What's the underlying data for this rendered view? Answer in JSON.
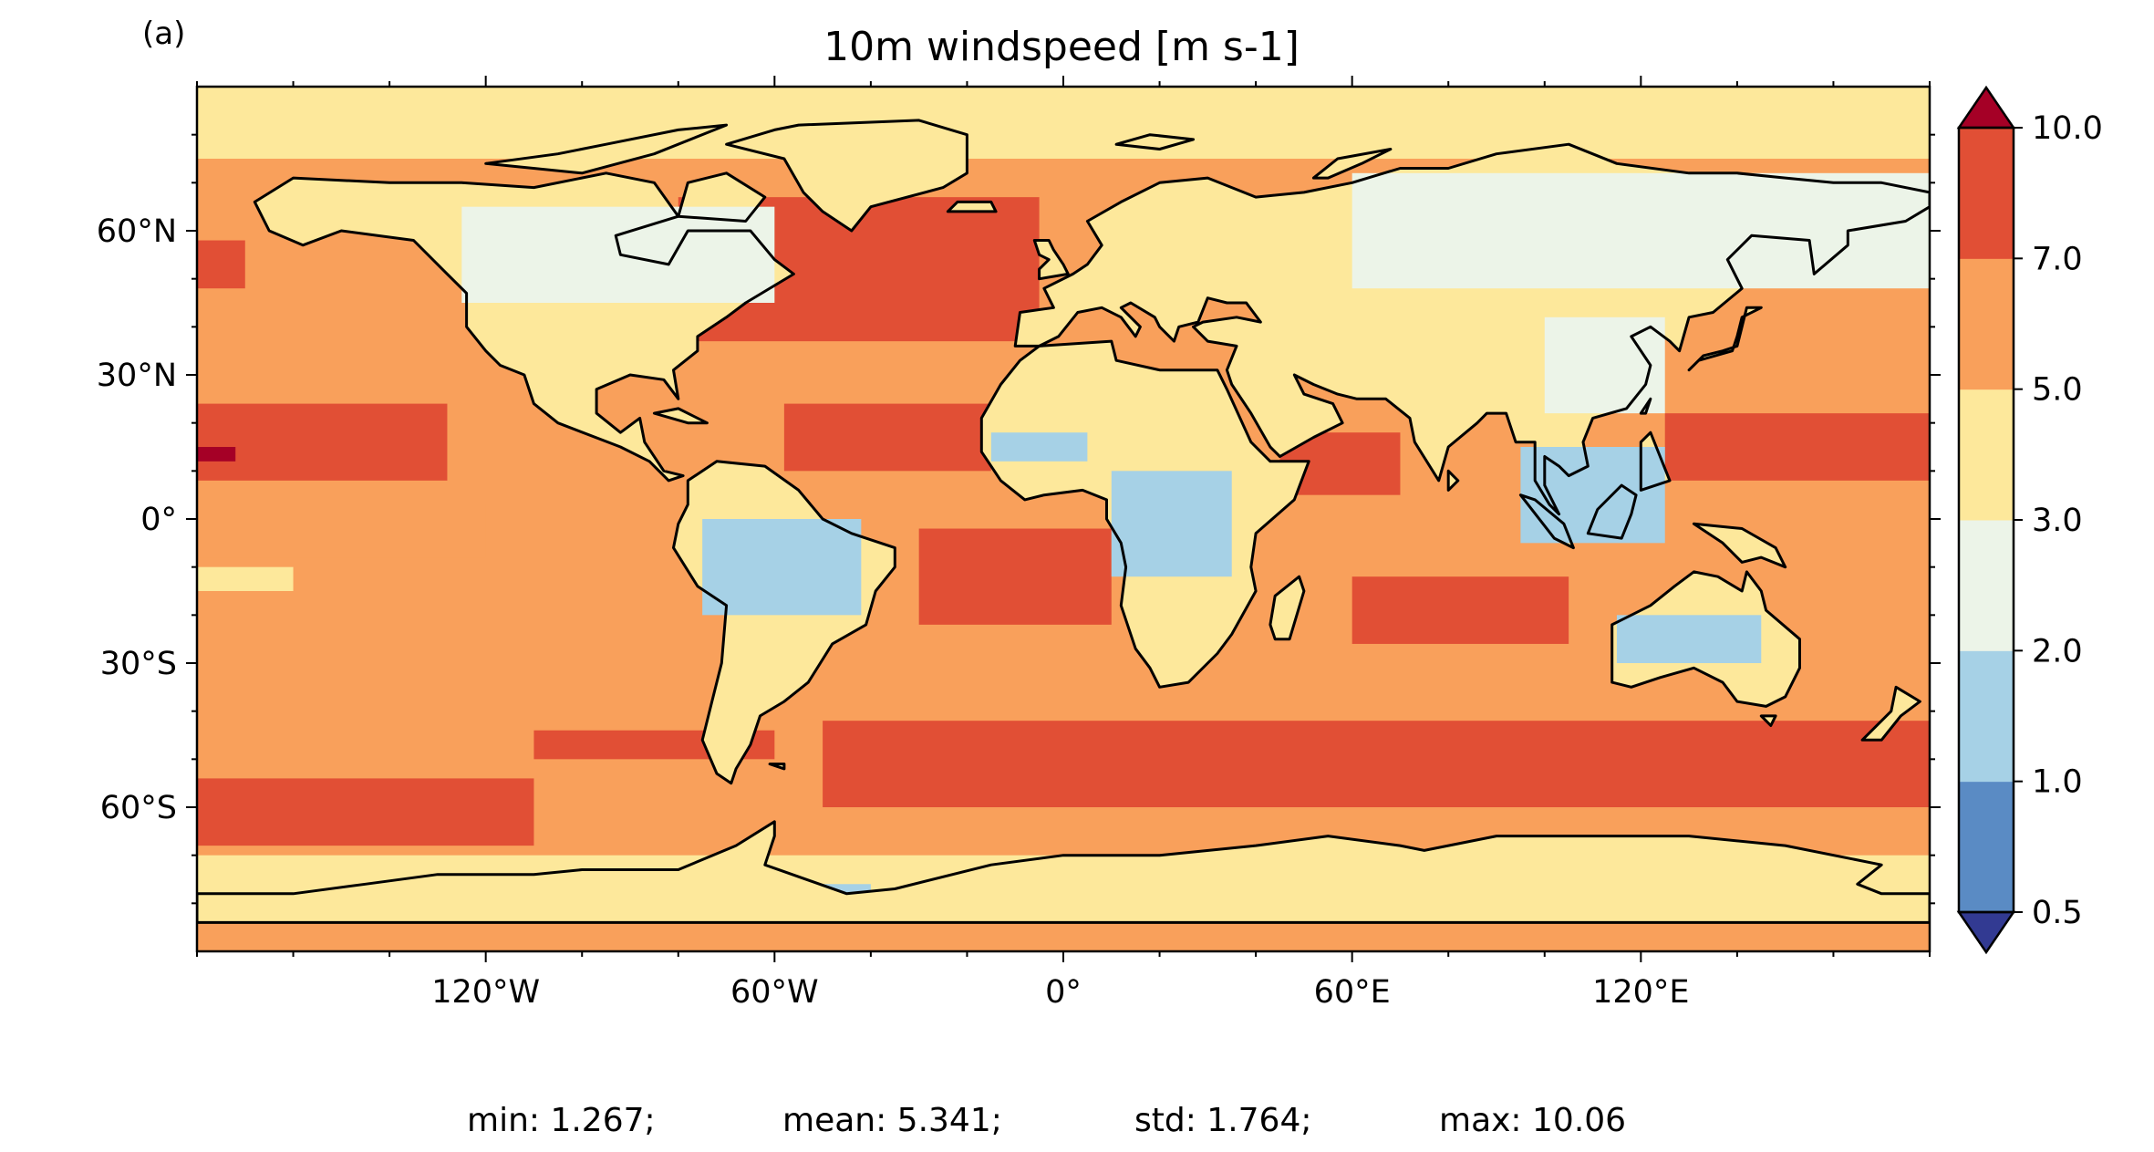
{
  "panel_label": "(a)",
  "title": "10m windspeed [m s-1]",
  "x_ticks": [
    "120°W",
    "60°W",
    "0°",
    "60°E",
    "120°E"
  ],
  "y_ticks": [
    "60°N",
    "30°N",
    "0°",
    "30°S",
    "60°S"
  ],
  "colorbar": {
    "levels": [
      0.5,
      1.0,
      2.0,
      3.0,
      5.0,
      7.0,
      10.0
    ],
    "labels": [
      "0.5",
      "1.0",
      "2.0",
      "3.0",
      "5.0",
      "7.0",
      "10.0"
    ],
    "colors": [
      "#5a8bc4",
      "#a6d1e6",
      "#ecf4e8",
      "#fde89b",
      "#f9a05b",
      "#e14f35"
    ],
    "under_color": "#323a92",
    "over_color": "#a50026"
  },
  "stats": {
    "min": "min: 1.267;",
    "mean": "mean: 5.341;",
    "std": "std: 1.764;",
    "max": "max: 10.06"
  },
  "map_data": {
    "projection": "plate-carree",
    "lon_range": [
      -180,
      180
    ],
    "lat_range": [
      -90,
      90
    ],
    "ocean_background_class": 4,
    "zones": [
      {
        "name": "southern-ocean-band",
        "lon": [
          -50,
          180
        ],
        "lat": [
          -60,
          -42
        ],
        "class": 5
      },
      {
        "name": "south-pacific-storm-track",
        "lon": [
          -180,
          -110
        ],
        "lat": [
          -68,
          -54
        ],
        "class": 5
      },
      {
        "name": "south-pacific-band",
        "lon": [
          -110,
          -60
        ],
        "lat": [
          -50,
          -44
        ],
        "class": 5
      },
      {
        "name": "north-pacific-trades",
        "lon": [
          -180,
          -128
        ],
        "lat": [
          8,
          24
        ],
        "class": 5
      },
      {
        "name": "north-atlantic-storm-track",
        "lon": [
          -80,
          -5
        ],
        "lat": [
          37,
          67
        ],
        "class": 5
      },
      {
        "name": "atlantic-trades",
        "lon": [
          -58,
          -15
        ],
        "lat": [
          10,
          24
        ],
        "class": 5
      },
      {
        "name": "south-atlantic-trades",
        "lon": [
          -30,
          10
        ],
        "lat": [
          -22,
          -2
        ],
        "class": 5
      },
      {
        "name": "indian-ocean-trades",
        "lon": [
          60,
          105
        ],
        "lat": [
          -26,
          -12
        ],
        "class": 5
      },
      {
        "name": "arabian-sea-jet",
        "lon": [
          45,
          70
        ],
        "lat": [
          5,
          18
        ],
        "class": 5
      },
      {
        "name": "west-pacific-trades",
        "lon": [
          125,
          180
        ],
        "lat": [
          8,
          22
        ],
        "class": 5
      },
      {
        "name": "north-pacific-storm-track",
        "lon": [
          -180,
          -170
        ],
        "lat": [
          48,
          58
        ],
        "class": 5
      },
      {
        "name": "antarctic-coastal-belt",
        "lon": [
          -180,
          180
        ],
        "lat": [
          -78,
          -70
        ],
        "class": 3
      },
      {
        "name": "arctic-ocean",
        "lon": [
          -180,
          180
        ],
        "lat": [
          75,
          90
        ],
        "class": 3
      },
      {
        "name": "equatorial-pacific-calm",
        "lon": [
          -180,
          -120
        ],
        "lat": [
          -8,
          3
        ],
        "class": 4
      },
      {
        "name": "hawaii-max",
        "lon": [
          -180,
          -172
        ],
        "lat": [
          12,
          15
        ],
        "class": 6
      },
      {
        "name": "antarctic-weddell-calm",
        "lon": [
          -60,
          -40
        ],
        "lat": [
          -79,
          -76
        ],
        "class": 1
      },
      {
        "name": "tropical-pacific-warm",
        "lon": [
          -180,
          -160
        ],
        "lat": [
          -15,
          -10
        ],
        "class": 3
      }
    ],
    "land_zones": [
      {
        "name": "amazon-basin",
        "lon": [
          -75,
          -42
        ],
        "lat": [
          -20,
          0
        ],
        "class": 1
      },
      {
        "name": "congo-basin",
        "lon": [
          10,
          35
        ],
        "lat": [
          -12,
          10
        ],
        "class": 1
      },
      {
        "name": "sahel-west",
        "lon": [
          -15,
          5
        ],
        "lat": [
          12,
          18
        ],
        "class": 1
      },
      {
        "name": "south-east-asia",
        "lon": [
          95,
          125
        ],
        "lat": [
          -5,
          15
        ],
        "class": 1
      },
      {
        "name": "australia-interior",
        "lon": [
          115,
          145
        ],
        "lat": [
          -30,
          -20
        ],
        "class": 1
      },
      {
        "name": "canada-boreal",
        "lon": [
          -125,
          -60
        ],
        "lat": [
          45,
          65
        ],
        "class": 2
      },
      {
        "name": "siberia",
        "lon": [
          60,
          180
        ],
        "lat": [
          48,
          72
        ],
        "class": 2
      },
      {
        "name": "china",
        "lon": [
          100,
          125
        ],
        "lat": [
          22,
          42
        ],
        "class": 2
      }
    ]
  }
}
